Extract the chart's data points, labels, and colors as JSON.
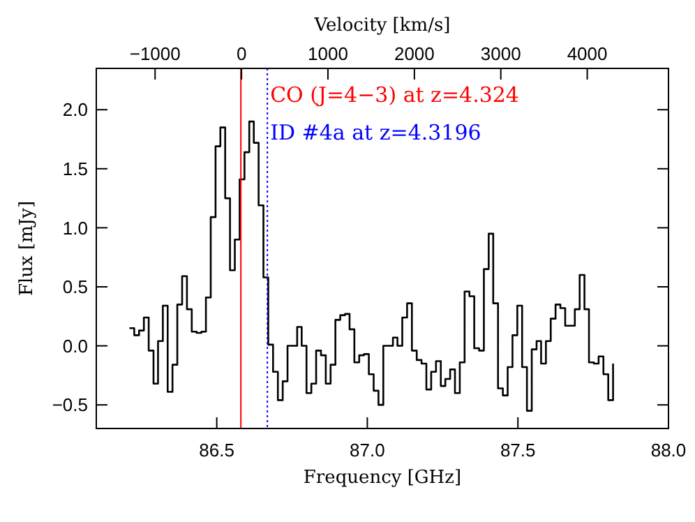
{
  "chart_data": {
    "type": "step",
    "xlabel": "Frequency [GHz]",
    "ylabel": "Flux [mJy]",
    "x2label": "Velocity [km/s]",
    "xlim": [
      86.1,
      88.0
    ],
    "xticks": [
      {
        "value": 86.5,
        "label": "86.5"
      },
      {
        "value": 87.0,
        "label": "87.0"
      },
      {
        "value": 87.5,
        "label": "87.5"
      },
      {
        "value": 88.0,
        "label": "88.0"
      }
    ],
    "x2lim": [
      -1680,
      4940
    ],
    "x2ticks": [
      {
        "value": -1000,
        "label": "−1000"
      },
      0,
      1000,
      2000,
      3000,
      4000
    ],
    "ylim": [
      -0.7,
      2.35
    ],
    "yticks": [
      {
        "value": -0.5,
        "label": "−0.5"
      },
      {
        "value": 0,
        "label": "0.0"
      },
      {
        "value": 0.5,
        "label": "0.5"
      },
      {
        "value": 1,
        "label": "1.0"
      },
      {
        "value": 1.5,
        "label": "1.5"
      },
      {
        "value": 2,
        "label": "2.0"
      }
    ],
    "grid": false,
    "ref_lines": [
      {
        "axis": "x",
        "value": 86.58,
        "color": "#ff0000",
        "line_style": "solid"
      },
      {
        "axis": "x",
        "value": 86.668,
        "color": "#0000ff",
        "line_style": "dotted"
      }
    ],
    "annotations": [
      "CO (J=4−3) at z=4.324",
      "ID #4a at z=4.3196"
    ],
    "series": [
      {
        "color": "#000000",
        "x": [
          86.21,
          86.226,
          86.242,
          86.258,
          86.274,
          86.29,
          86.305,
          86.321,
          86.337,
          86.353,
          86.369,
          86.385,
          86.401,
          86.417,
          86.433,
          86.449,
          86.464,
          86.48,
          86.496,
          86.512,
          86.528,
          86.544,
          86.56,
          86.576,
          86.592,
          86.608,
          86.623,
          86.639,
          86.655,
          86.671,
          86.687,
          86.703,
          86.719,
          86.735,
          86.751,
          86.767,
          86.782,
          86.798,
          86.814,
          86.83,
          86.846,
          86.862,
          86.878,
          86.894,
          86.91,
          86.926,
          86.941,
          86.957,
          86.973,
          86.989,
          87.005,
          87.021,
          87.037,
          87.053,
          87.069,
          87.085,
          87.1,
          87.116,
          87.132,
          87.148,
          87.164,
          87.18,
          87.196,
          87.212,
          87.228,
          87.244,
          87.259,
          87.275,
          87.291,
          87.307,
          87.323,
          87.339,
          87.355,
          87.371,
          87.387,
          87.403,
          87.418,
          87.434,
          87.45,
          87.466,
          87.482,
          87.498,
          87.514,
          87.53,
          87.546,
          87.562,
          87.577,
          87.593,
          87.609,
          87.625,
          87.641,
          87.657,
          87.673,
          87.689,
          87.705,
          87.721,
          87.736,
          87.752,
          87.768,
          87.784,
          87.8,
          87.816
        ],
        "values": [
          0.15,
          0.09,
          0.13,
          0.24,
          -0.04,
          -0.32,
          0.04,
          0.34,
          -0.39,
          -0.16,
          0.35,
          0.59,
          0.31,
          0.12,
          0.11,
          0.12,
          0.41,
          1.09,
          1.69,
          1.85,
          1.25,
          0.64,
          0.9,
          1.41,
          1.64,
          1.9,
          1.72,
          1.19,
          0.58,
          0.01,
          -0.22,
          -0.46,
          -0.3,
          0.0,
          0.0,
          0.16,
          0.0,
          -0.4,
          -0.32,
          -0.04,
          -0.08,
          -0.32,
          -0.16,
          0.22,
          0.26,
          0.27,
          0.14,
          -0.14,
          -0.08,
          -0.07,
          -0.24,
          -0.38,
          -0.5,
          0.0,
          0.0,
          0.07,
          0.0,
          0.24,
          0.36,
          -0.04,
          -0.12,
          -0.15,
          -0.37,
          -0.22,
          -0.13,
          -0.34,
          -0.28,
          -0.2,
          -0.4,
          -0.14,
          0.46,
          0.42,
          -0.02,
          -0.04,
          0.65,
          0.95,
          0.36,
          -0.36,
          -0.42,
          -0.18,
          0.09,
          0.34,
          -0.18,
          -0.55,
          -0.03,
          0.04,
          -0.15,
          0.04,
          0.23,
          0.35,
          0.32,
          0.17,
          0.17,
          0.31,
          0.6,
          0.31,
          -0.14,
          -0.15,
          -0.09,
          -0.24,
          -0.46,
          -0.15
        ]
      }
    ]
  }
}
